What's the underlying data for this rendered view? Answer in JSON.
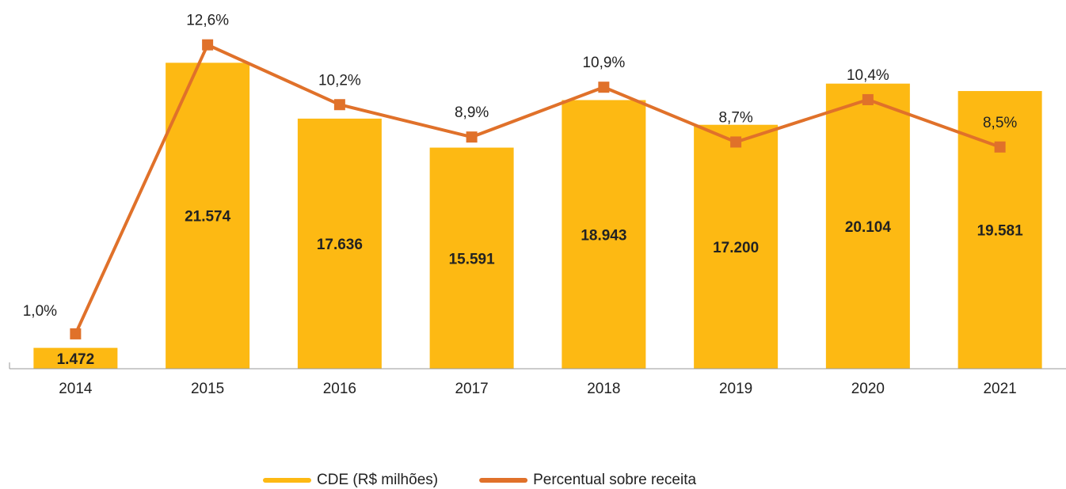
{
  "chart_data": {
    "type": "bar_line",
    "categories": [
      "2014",
      "2015",
      "2016",
      "2017",
      "2018",
      "2019",
      "2020",
      "2021"
    ],
    "series": [
      {
        "name": "CDE (R$ milhões)",
        "type": "bar",
        "color": "#fdb913",
        "values": [
          1472,
          21574,
          17636,
          15591,
          18943,
          17200,
          20104,
          19581
        ],
        "value_labels": [
          "1.472",
          "21.574",
          "17.636",
          "15.591",
          "18.943",
          "17.200",
          "20.104",
          "19.581"
        ]
      },
      {
        "name": "Percentual sobre receita",
        "type": "line",
        "axis": "y2",
        "color": "#e0712a",
        "values": [
          1.0,
          12.6,
          10.2,
          8.9,
          10.9,
          8.7,
          10.4,
          8.5
        ],
        "value_labels": [
          "1,0%",
          "12,6%",
          "10,2%",
          "8,9%",
          "10,9%",
          "8,7%",
          "10,4%",
          "8,5%"
        ]
      }
    ],
    "ylim": [
      0,
      26000
    ],
    "y2lim": [
      -0.4,
      14.4
    ],
    "legend": "bottom"
  }
}
